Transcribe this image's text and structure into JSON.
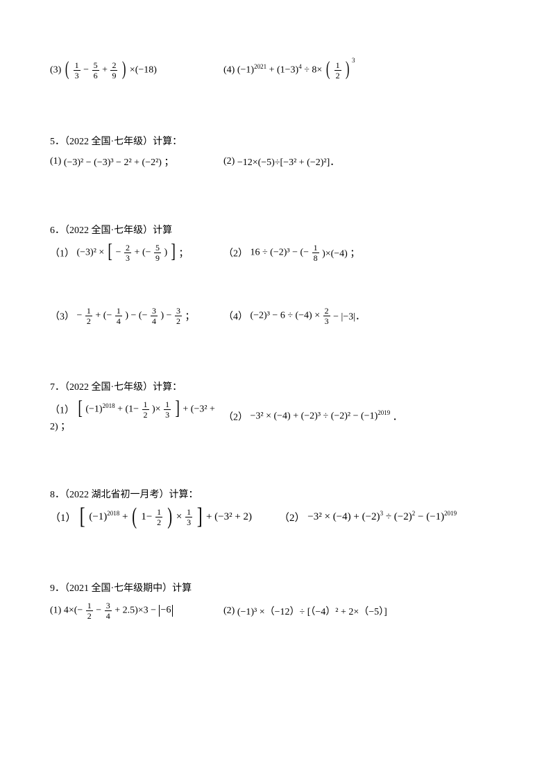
{
  "background_color": "#ffffff",
  "text_color": "#000000",
  "font_family": "SimSun",
  "base_font_size": 14,
  "problems": {
    "p4_3": "(3)",
    "p4_4": "(4)",
    "q5": {
      "heading": "5．（2022 全国·七年级）计算：",
      "a_label": "(1)",
      "a_body": "(−3)² − (−3)³ − 2² + (−2²) ；",
      "b_label": "(2)",
      "b_body": "−12×(−5)÷[−3² + (−2)²]．"
    },
    "q6": {
      "heading": "6．（2022 全国·七年级）计算",
      "a_label": "（1）",
      "b_label": "（2）",
      "c_label": "（3）",
      "d_label": "（4）",
      "d_body": "(−2)³ − 6 ÷ (−4) ×",
      "d_tail": "− |−3|．"
    },
    "q7": {
      "heading": "7．（2022 全国·七年级）计算：",
      "a_label": "（1）",
      "b_label": "（2）",
      "b_body": "−3² × (−4) + (−2)³ ÷ (−2)² − (−1)"
    },
    "q8": {
      "heading": "8．（2022 湖北省初一月考）计算：",
      "a_label": "（1）",
      "b_label": "（2）",
      "b_body_pre": "−3² ×",
      "b_body_mid": "(−4)",
      "b_body_mid2": "+ (−2)",
      "b_body_mid3": " ÷ (−2)",
      "b_body_end": " − (−1)"
    },
    "q9": {
      "heading": "9．（2021 全国·七年级期中）计算",
      "a_label": "(1)",
      "b_label": "(2)",
      "b_body": "(−1)³ ×（−12）÷ [（−4）² + 2×（−5）]"
    }
  },
  "exponents": {
    "e2021": "2021",
    "e4": "4",
    "e3": "3",
    "e2": "2",
    "e2018": "2018",
    "e2019": "2019"
  },
  "fractions": {
    "f1_3": {
      "n": "1",
      "d": "3"
    },
    "f5_6": {
      "n": "5",
      "d": "6"
    },
    "f2_9": {
      "n": "2",
      "d": "9"
    },
    "f1_2": {
      "n": "1",
      "d": "2"
    },
    "f2_3": {
      "n": "2",
      "d": "3"
    },
    "f5_9": {
      "n": "5",
      "d": "9"
    },
    "f1_8": {
      "n": "1",
      "d": "8"
    },
    "f1_4": {
      "n": "1",
      "d": "4"
    },
    "f3_4": {
      "n": "3",
      "d": "4"
    },
    "f3_2": {
      "n": "3",
      "d": "2"
    },
    "f1_3b": {
      "n": "1",
      "d": "3"
    }
  },
  "text": {
    "times_neg18": "×(−18)",
    "neg1": "(−1)",
    "plus_1m3": "+ (1−3)",
    "div8x": "÷ 8×",
    "neg3_sq_x": "(−3)² ×",
    "neg": "−",
    "plus_neg": "+ (−",
    "close_semi": ") ；",
    "q6b": "16 ÷ (−2)³ − (−",
    "q6b_tail": ")×(−4) ；",
    "q6c_mid": "+ (−",
    "q6c_mid2": ") − (−",
    "q6c_tail": " ；",
    "one_minus": "+ (1−",
    "times": ")×",
    "plus_neg3sq2": "+ (−3² + 2) ；",
    "plus_neg3sq2b": "+ (−3² + 2)",
    "p9a_pre": "4×(−",
    "p9a_mid": "+ 2.5)×3 −",
    "abs6": "−6",
    "semi": "；",
    "dot": "．"
  }
}
